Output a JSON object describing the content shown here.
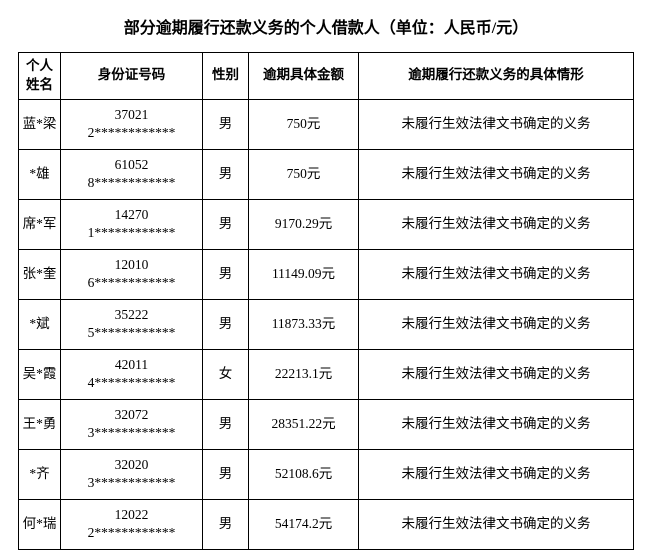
{
  "title": "部分逾期履行还款义务的个人借款人（单位：人民币/元）",
  "columns": {
    "name": "个人姓名",
    "id": "身份证号码",
    "gender": "性别",
    "amount": "逾期具体金额",
    "detail": "逾期履行还款义务的具体情形"
  },
  "rows": [
    {
      "name": "蓝*梁",
      "id_line1": "37021",
      "id_line2": "2************",
      "gender": "男",
      "amount": "750元",
      "detail": "未履行生效法律文书确定的义务"
    },
    {
      "name": "*雄",
      "id_line1": "61052",
      "id_line2": "8************",
      "gender": "男",
      "amount": "750元",
      "detail": "未履行生效法律文书确定的义务"
    },
    {
      "name": "席*军",
      "id_line1": "14270",
      "id_line2": "1************",
      "gender": "男",
      "amount": "9170.29元",
      "detail": "未履行生效法律文书确定的义务"
    },
    {
      "name": "张*奎",
      "id_line1": "12010",
      "id_line2": "6************",
      "gender": "男",
      "amount": "11149.09元",
      "detail": "未履行生效法律文书确定的义务"
    },
    {
      "name": "*斌",
      "id_line1": "35222",
      "id_line2": "5************",
      "gender": "男",
      "amount": "11873.33元",
      "detail": "未履行生效法律文书确定的义务"
    },
    {
      "name": "吴*霞",
      "id_line1": "42011",
      "id_line2": "4************",
      "gender": "女",
      "amount": "22213.1元",
      "detail": "未履行生效法律文书确定的义务"
    },
    {
      "name": "王*勇",
      "id_line1": "32072",
      "id_line2": "3************",
      "gender": "男",
      "amount": "28351.22元",
      "detail": "未履行生效法律文书确定的义务"
    },
    {
      "name": "*齐",
      "id_line1": "32020",
      "id_line2": "3************",
      "gender": "男",
      "amount": "52108.6元",
      "detail": "未履行生效法律文书确定的义务"
    },
    {
      "name": "何*瑞",
      "id_line1": "12022",
      "id_line2": "2************",
      "gender": "男",
      "amount": "54174.2元",
      "detail": "未履行生效法律文书确定的义务"
    }
  ]
}
